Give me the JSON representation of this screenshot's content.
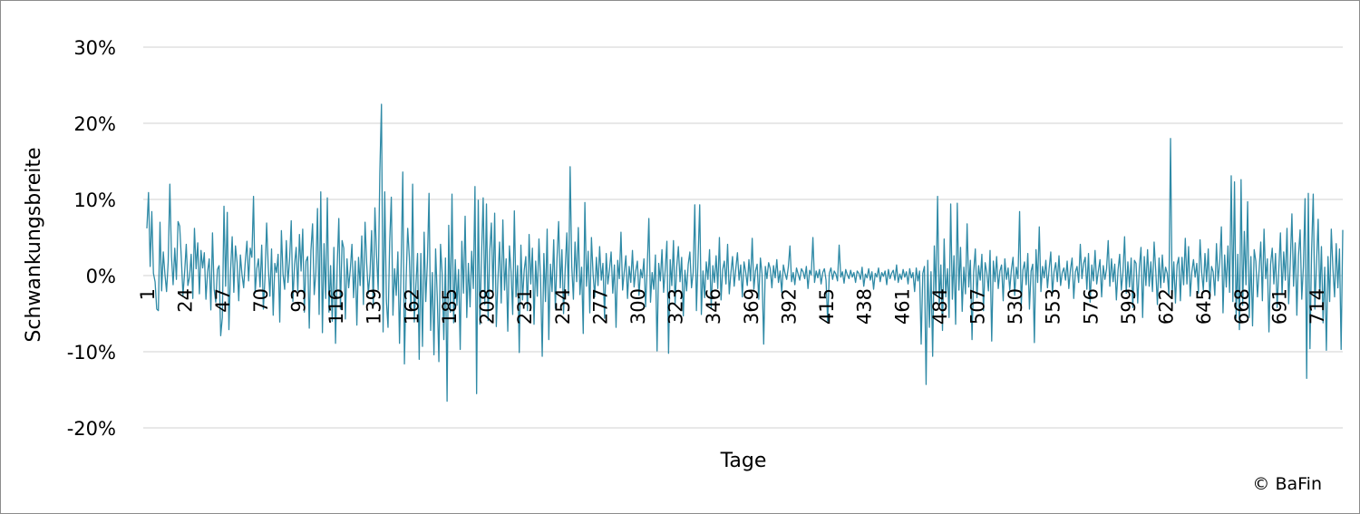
{
  "chart_data": {
    "type": "line",
    "y_label": "Schwankungsbreite",
    "x_label": "Tage",
    "source": "© BaFin",
    "ylim": [
      -20,
      30
    ],
    "yticks": [
      {
        "value": -20,
        "label": "-20%"
      },
      {
        "value": -10,
        "label": "-10%"
      },
      {
        "value": 0,
        "label": "0%"
      },
      {
        "value": 10,
        "label": "10%"
      },
      {
        "value": 20,
        "label": "20%"
      },
      {
        "value": 30,
        "label": "30%"
      }
    ],
    "xlim": [
      1,
      730
    ],
    "xticks": [
      1,
      24,
      47,
      70,
      93,
      116,
      139,
      162,
      185,
      208,
      231,
      254,
      277,
      300,
      323,
      346,
      369,
      392,
      415,
      438,
      461,
      484,
      507,
      530,
      553,
      576,
      599,
      622,
      645,
      668,
      691,
      714
    ],
    "grid": true,
    "color": "#2f8aa6",
    "x": [
      1,
      2,
      3,
      4,
      5,
      6,
      7,
      8,
      9,
      10,
      11,
      12,
      13,
      14,
      15,
      16,
      17,
      18,
      19,
      20,
      21,
      22,
      23,
      24,
      25,
      26,
      27,
      28,
      29,
      30,
      31,
      32,
      33,
      34,
      35,
      36,
      37,
      38,
      39,
      40,
      41,
      42,
      43,
      44,
      45,
      46,
      47,
      48,
      49,
      50,
      51,
      52,
      53,
      54,
      55,
      56,
      57,
      58,
      59,
      60,
      61,
      62,
      63,
      64,
      65,
      66,
      67,
      68,
      69,
      70,
      71,
      72,
      73,
      74,
      75,
      76,
      77,
      78,
      79,
      80,
      81,
      82,
      83,
      84,
      85,
      86,
      87,
      88,
      89,
      90,
      91,
      92,
      93,
      94,
      95,
      96,
      97,
      98,
      99,
      100,
      101,
      102,
      103,
      104,
      105,
      106,
      107,
      108,
      109,
      110,
      111,
      112,
      113,
      114,
      115,
      116,
      117,
      118,
      119,
      120,
      121,
      122,
      123,
      124,
      125,
      126,
      127,
      128,
      129,
      130,
      131,
      132,
      133,
      134,
      135,
      136,
      137,
      138,
      139,
      140,
      141,
      142,
      143,
      144,
      145,
      146,
      147,
      148,
      149,
      150,
      151,
      152,
      153,
      154,
      155,
      156,
      157,
      158,
      159,
      160,
      161,
      162,
      163,
      164,
      165,
      166,
      167,
      168,
      169,
      170,
      171,
      172,
      173,
      174,
      175,
      176,
      177,
      178,
      179,
      180,
      181,
      182,
      183,
      184,
      185,
      186,
      187,
      188,
      189,
      190,
      191,
      192,
      193,
      194,
      195,
      196,
      197,
      198,
      199,
      200,
      201,
      202,
      203,
      204,
      205,
      206,
      207,
      208,
      209,
      210,
      211,
      212,
      213,
      214,
      215,
      216,
      217,
      218,
      219,
      220,
      221,
      222,
      223,
      224,
      225,
      226,
      227,
      228,
      229,
      230,
      231,
      232,
      233,
      234,
      235,
      236,
      237,
      238,
      239,
      240,
      241,
      242,
      243,
      244,
      245,
      246,
      247,
      248,
      249,
      250,
      251,
      252,
      253,
      254,
      255,
      256,
      257,
      258,
      259,
      260,
      261,
      262,
      263,
      264,
      265,
      266,
      267,
      268,
      269,
      270,
      271,
      272,
      273,
      274,
      275,
      276,
      277,
      278,
      279,
      280,
      281,
      282,
      283,
      284,
      285,
      286,
      287,
      288,
      289,
      290,
      291,
      292,
      293,
      294,
      295,
      296,
      297,
      298,
      299,
      300,
      301,
      302,
      303,
      304,
      305,
      306,
      307,
      308,
      309,
      310,
      311,
      312,
      313,
      314,
      315,
      316,
      317,
      318,
      319,
      320,
      321,
      322,
      323,
      324,
      325,
      326,
      327,
      328,
      329,
      330,
      331,
      332,
      333,
      334,
      335,
      336,
      337,
      338,
      339,
      340,
      341,
      342,
      343,
      344,
      345,
      346,
      347,
      348,
      349,
      350,
      351,
      352,
      353,
      354,
      355,
      356,
      357,
      358,
      359,
      360,
      361,
      362,
      363,
      364,
      365,
      366,
      367,
      368,
      369,
      370,
      371,
      372,
      373,
      374,
      375,
      376,
      377,
      378,
      379,
      380,
      381,
      382,
      383,
      384,
      385,
      386,
      387,
      388,
      389,
      390,
      391,
      392,
      393,
      394,
      395,
      396,
      397,
      398,
      399,
      400,
      401,
      402,
      403,
      404,
      405,
      406,
      407,
      408,
      409,
      410,
      411,
      412,
      413,
      414,
      415,
      416,
      417,
      418,
      419,
      420,
      421,
      422,
      423,
      424,
      425,
      426,
      427,
      428,
      429,
      430,
      431,
      432,
      433,
      434,
      435,
      436,
      437,
      438,
      439,
      440,
      441,
      442,
      443,
      444,
      445,
      446,
      447,
      448,
      449,
      450,
      451,
      452,
      453,
      454,
      455,
      456,
      457,
      458,
      459,
      460,
      461,
      462,
      463,
      464,
      465,
      466,
      467,
      468,
      469,
      470,
      471,
      472,
      473,
      474,
      475,
      476,
      477,
      478,
      479,
      480,
      481,
      482,
      483,
      484,
      485,
      486,
      487,
      488,
      489,
      490,
      491,
      492,
      493,
      494,
      495,
      496,
      497,
      498,
      499,
      500,
      501,
      502,
      503,
      504,
      505,
      506,
      507,
      508,
      509,
      510,
      511,
      512,
      513,
      514,
      515,
      516,
      517,
      518,
      519,
      520,
      521,
      522,
      523,
      524,
      525,
      526,
      527,
      528,
      529,
      530,
      531,
      532,
      533,
      534,
      535,
      536,
      537,
      538,
      539,
      540,
      541,
      542,
      543,
      544,
      545,
      546,
      547,
      548,
      549,
      550,
      551,
      552,
      553,
      554,
      555,
      556,
      557,
      558,
      559,
      560,
      561,
      562,
      563,
      564,
      565,
      566,
      567,
      568,
      569,
      570,
      571,
      572,
      573,
      574,
      575,
      576,
      577,
      578,
      579,
      580,
      581,
      582,
      583,
      584,
      585,
      586,
      587,
      588,
      589,
      590,
      591,
      592,
      593,
      594,
      595,
      596,
      597,
      598,
      599,
      600,
      601,
      602,
      603,
      604,
      605,
      606,
      607,
      608,
      609,
      610,
      611,
      612,
      613,
      614,
      615,
      616,
      617,
      618,
      619,
      620,
      621,
      622,
      623,
      624,
      625,
      626,
      627,
      628,
      629,
      630,
      631,
      632,
      633,
      634,
      635,
      636,
      637,
      638,
      639,
      640,
      641,
      642,
      643,
      644,
      645,
      646,
      647,
      648,
      649,
      650,
      651,
      652,
      653,
      654,
      655,
      656,
      657,
      658,
      659,
      660,
      661,
      662,
      663,
      664,
      665,
      666,
      667,
      668,
      669,
      670,
      671,
      672,
      673,
      674,
      675,
      676,
      677,
      678,
      679,
      680,
      681,
      682,
      683,
      684,
      685,
      686,
      687,
      688,
      689,
      690,
      691,
      692,
      693,
      694,
      695,
      696,
      697,
      698,
      699,
      700,
      701,
      702,
      703,
      704,
      705,
      706,
      707,
      708,
      709,
      710,
      711,
      712,
      713,
      714,
      715,
      716,
      717,
      718,
      719,
      720,
      721,
      722,
      723,
      724,
      725,
      726,
      727,
      728,
      729,
      730
    ],
    "values": [
      6.2,
      10.9,
      1.2,
      8.4,
      0.3,
      -0.8,
      -4.4,
      -4.6,
      7,
      -2,
      3.1,
      0.2,
      -2.1,
      1.8,
      12,
      2.5,
      -1.2,
      3.6,
      -0.5,
      7.1,
      6.5,
      2.3,
      -2.6,
      0.4,
      4.1,
      -1.3,
      -0.2,
      2.8,
      -3,
      6.2,
      0.9,
      4.3,
      -2.4,
      3.3,
      1,
      3,
      -3.1,
      0.5,
      2.2,
      -4.5,
      5.6,
      -1.8,
      -3.5,
      0.8,
      1.3,
      -7.9,
      -5.5,
      9.1,
      -1.4,
      8.3,
      -7.1,
      0.6,
      5.1,
      -2.2,
      3.9,
      1.7,
      -3.3,
      2.7,
      0.1,
      -1.6,
      1.9,
      4.5,
      -0.7,
      3.6,
      2.4,
      10.4,
      -2.3,
      0.9,
      2.2,
      -1.5,
      4,
      -4.4,
      -0.3,
      6.9,
      1.1,
      -2.7,
      3.5,
      -5.2,
      1.6,
      0.4,
      2.8,
      -6.1,
      5.9,
      0.2,
      -1.8,
      4.6,
      -0.9,
      2.1,
      7.2,
      -3.4,
      1.4,
      3.7,
      -2,
      5.4,
      0.6,
      6.1,
      -4.8,
      1.9,
      2.5,
      -6.9,
      3.3,
      6.8,
      -2.5,
      0.4,
      8.8,
      -5.1,
      11,
      -7.5,
      4.2,
      -3,
      10.2,
      -4.8,
      1.3,
      -6,
      3.7,
      -8.9,
      1.1,
      7.5,
      -4.4,
      4.6,
      3.6,
      -5.7,
      2.2,
      -1.6,
      0.8,
      4.1,
      -2.9,
      1.9,
      -6.5,
      2.4,
      -1.3,
      5.2,
      -3.8,
      7,
      1.6,
      -2.4,
      0.3,
      5.9,
      -4.1,
      8.9,
      2.7,
      -1.9,
      13.5,
      22.5,
      -7.4,
      11,
      -3.3,
      -6.8,
      4.4,
      10.3,
      -5.2,
      0.9,
      -2.6,
      3.1,
      -8.9,
      1.4,
      13.6,
      -11.6,
      -0.8,
      6.2,
      2.4,
      -4.6,
      12,
      -6.1,
      -1.2,
      2.9,
      -11,
      2.9,
      -9.3,
      5.7,
      -3.4,
      1.8,
      10.8,
      -7.2,
      0.4,
      -10.4,
      3.5,
      -2.7,
      -11.3,
      4.1,
      0.3,
      -8.4,
      2.3,
      -16.5,
      6.6,
      -4.8,
      10.7,
      -6.2,
      2.1,
      -3.9,
      0.8,
      -9.7,
      4.5,
      -2.3,
      7.8,
      -5.5,
      1.6,
      -4.1,
      3.2,
      -1.7,
      11.7,
      -15.5,
      9.9,
      -6.4,
      2.6,
      10.2,
      -3.8,
      9.4,
      -5.9,
      3.1,
      6.9,
      -2.2,
      8.2,
      -6.7,
      -0.5,
      4.4,
      -3.6,
      7.3,
      -1.9,
      2.2,
      -7.3,
      3.9,
      0.5,
      -5.1,
      8.5,
      -2.8,
      1.3,
      -10.1,
      4,
      -3.2,
      0.7,
      2.5,
      -4.6,
      5.4,
      -1.1,
      3.6,
      -6.4,
      1.9,
      -2.7,
      4.8,
      -0.6,
      -10.6,
      2.9,
      -3.4,
      6.1,
      -8.4,
      1.5,
      -2.1,
      4.7,
      -4.3,
      2.2,
      7.1,
      -1.6,
      3.4,
      -5,
      0.9,
      5.6,
      -2.6,
      14.3,
      1.2,
      -3.1,
      4.4,
      -0.8,
      6.3,
      -2.5,
      1.1,
      -7.6,
      9.6,
      -1.4,
      3.2,
      -4.9,
      5,
      0.2,
      -2.8,
      2.4,
      -1.3,
      3.8,
      -0.6,
      1.6,
      -5.6,
      2.9,
      -1.1,
      0.8,
      3.1,
      -2.3,
      1.4,
      -6.8,
      2,
      -0.4,
      5.7,
      -1.9,
      0.5,
      2.6,
      -3,
      1.2,
      -0.9,
      3.3,
      -1.5,
      0.6,
      1.9,
      -2.6,
      0.8,
      -0.3,
      2.2,
      -4.1,
      1,
      7.5,
      -3.5,
      0.4,
      -1.8,
      2.7,
      -9.9,
      1.6,
      -0.7,
      3.4,
      -2.2,
      0.9,
      4.5,
      -10.2,
      2.1,
      -1.3,
      4.6,
      -3.7,
      1.2,
      3.8,
      -0.8,
      2.4,
      -5.3,
      0.7,
      -2,
      1.5,
      3.1,
      -1.6,
      0.4,
      9.3,
      -4.6,
      2.2,
      9.3,
      -5.1,
      0.6,
      -2.9,
      1.8,
      -0.5,
      3.4,
      -4.2,
      1.3,
      -0.9,
      2.6,
      -1.7,
      5,
      -3.2,
      0.8,
      1.9,
      -1.1,
      4.1,
      -2.4,
      0.3,
      2.5,
      -1.4,
      0.9,
      3,
      -0.6,
      1.4,
      -2.8,
      1.8,
      0.5,
      -1.3,
      2.1,
      -0.7,
      4.9,
      -1.8,
      0.6,
      1.5,
      -3.1,
      2.3,
      0.2,
      -9,
      1.2,
      -0.4,
      1.7,
      0.9,
      -1.6,
      1.3,
      -0.3,
      2.1,
      -0.9,
      0.6,
      -2.2,
      1.4,
      0.3,
      -0.5,
      1.1,
      3.9,
      -0.8,
      0.4,
      -1.2,
      1,
      0.2,
      -0.6,
      0.9,
      0.5,
      -0.4,
      1.2,
      -1.7,
      0.7,
      0.1,
      5,
      -0.9,
      0.6,
      -0.3,
      0.8,
      -1.1,
      0.4,
      0.9,
      -0.6,
      -6,
      0.3,
      1,
      -0.5,
      0.6,
      0.2,
      -0.7,
      4,
      -0.2,
      0.5,
      -1,
      0.8,
      0.1,
      -0.4,
      0.7,
      -0.2,
      0.4,
      -0.9,
      0.6,
      0.3,
      -0.5,
      1.1,
      -1.4,
      0.2,
      -0.3,
      0.9,
      -0.6,
      0.5,
      -1.8,
      0.3,
      -0.2,
      1,
      -0.8,
      0.4,
      -0.1,
      0.6,
      -1.2,
      0.8,
      -0.4,
      0.3,
      0.7,
      -0.6,
      1.4,
      -0.9,
      0.2,
      -0.5,
      0.8,
      -0.2,
      0.5,
      -1.1,
      0.9,
      -0.3,
      0.4,
      -2.1,
      1,
      -0.7,
      0.6,
      -9,
      0.3,
      1.2,
      -14.3,
      2,
      -6.8,
      0.5,
      -10.6,
      3.9,
      -2.5,
      10.4,
      -4,
      1.4,
      -7.2,
      4.8,
      -2.8,
      0.9,
      -5.5,
      9.4,
      -3.1,
      2.6,
      -6.4,
      9.5,
      -1.9,
      3.7,
      -4.7,
      1.1,
      -2.4,
      6.8,
      -1.5,
      2,
      -8.4,
      0.5,
      3.5,
      -2.9,
      1.3,
      -0.6,
      2.8,
      -4.6,
      1.7,
      0.4,
      -2,
      3.3,
      -8.6,
      1.9,
      -0.8,
      2.5,
      -1.7,
      0.6,
      1.4,
      -3.3,
      2.2,
      -0.5,
      1,
      -1.9,
      0.8,
      2.4,
      -2.6,
      1.1,
      -0.4,
      8.4,
      -3.9,
      0.7,
      1.8,
      -1.2,
      2.9,
      -4.4,
      0.6,
      1.5,
      -8.8,
      3.4,
      -0.9,
      6.4,
      -2.1,
      1.2,
      -0.3,
      2,
      -1.6,
      0.9,
      3.1,
      -2.4,
      0.5,
      1.7,
      -0.8,
      2.6,
      -1.3,
      0.4,
      1,
      -0.6,
      1.9,
      -1.7,
      0.8,
      2.3,
      -3,
      0.5,
      1.2,
      -0.9,
      4.1,
      -0.4,
      1.6,
      2.4,
      -1.8,
      2.9,
      -3.5,
      1.4,
      -0.7,
      3.3,
      -1.1,
      0.6,
      2.1,
      -2.8,
      1.3,
      -0.5,
      0.9,
      4.6,
      -1.4,
      2.2,
      -0.8,
      1.5,
      -3.2,
      0.7,
      2.8,
      -1.9,
      0.4,
      5.1,
      -2.3,
      1.8,
      -1.5,
      2.3,
      -4.2,
      2,
      1.6,
      -3.6,
      1.1,
      3.7,
      -5.5,
      2.5,
      -1.3,
      3.4,
      -1.4,
      1.8,
      -2.1,
      4.4,
      0.6,
      -3.8,
      2.3,
      -1.6,
      2.7,
      -0.9,
      1.1,
      0.3,
      -2.5,
      18,
      -2.8,
      1.8,
      -3.6,
      1.4,
      2.4,
      -3.3,
      2.4,
      -1.2,
      4.9,
      -1.1,
      3.8,
      -2.7,
      0.5,
      2.1,
      -0.2,
      1.6,
      -2.3,
      4.7,
      0.4,
      -1.9,
      2.9,
      -0.8,
      3.5,
      -3.1,
      1.2,
      0.5,
      -2.6,
      4.2,
      -0.7,
      1.8,
      6.4,
      -4.9,
      2.7,
      -1.5,
      3.9,
      -2.2,
      13.1,
      -3.4,
      12.3,
      -5.6,
      2.8,
      -7.1,
      12.6,
      -3.9,
      5.8,
      -1.2,
      9.7,
      -5.5,
      2.5,
      -6.6,
      3.4,
      1.9,
      -2.8,
      0.7,
      4.4,
      -3.3,
      6.1,
      -0.4,
      2.2,
      -7.4,
      1.5,
      3.6,
      -1.1,
      2.9,
      -4.2,
      0.8,
      5.6,
      -2.5,
      3.1,
      -0.6,
      6.2,
      -3.7,
      1.7,
      8.1,
      -1.4,
      4.3,
      -5.2,
      2.6,
      6,
      -3.1,
      1.2,
      10.1,
      -13.5,
      10.8,
      -9.6,
      3.2,
      10.7,
      -4.4,
      1.6,
      7.4,
      -2.9,
      3.8,
      -6.2,
      1.1,
      -9.8,
      2.5,
      -3.4,
      6.1,
      0.9,
      -2.8,
      4.2,
      -1.6,
      3.5,
      -9.7,
      6
    ]
  }
}
